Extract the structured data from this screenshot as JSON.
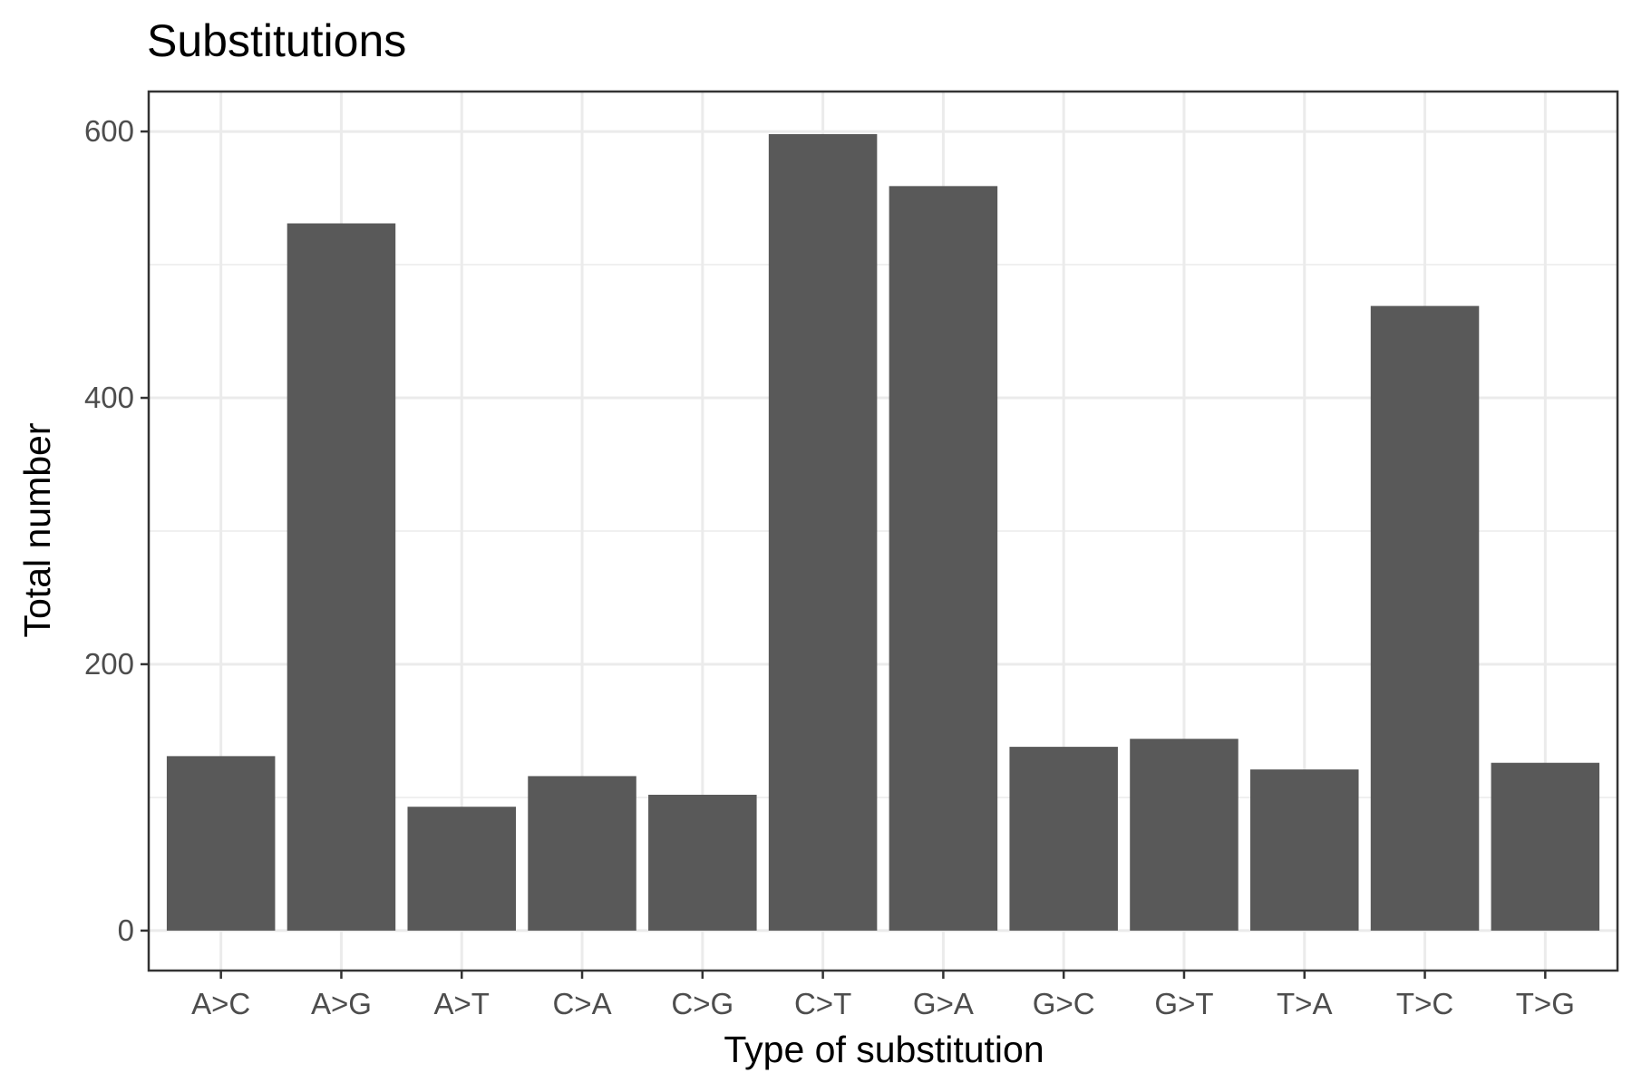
{
  "chart_data": {
    "type": "bar",
    "title": "Substitutions",
    "xlabel": "Type of substitution",
    "ylabel": "Total number",
    "categories": [
      "A>C",
      "A>G",
      "A>T",
      "C>A",
      "C>G",
      "C>T",
      "G>A",
      "G>C",
      "G>T",
      "T>A",
      "T>C",
      "T>G"
    ],
    "values": [
      131,
      531,
      93,
      116,
      102,
      598,
      559,
      138,
      144,
      121,
      469,
      126
    ],
    "ylim": [
      -30,
      630
    ],
    "yticks": [
      0,
      200,
      400,
      600
    ],
    "yticks_minor": [
      100,
      300,
      500
    ],
    "grid": true,
    "legend": "none",
    "colors": {
      "bar": "#595959",
      "grid": "#ebebeb",
      "panel_border": "#333333",
      "tick_text": "#4d4d4d",
      "background": "#ffffff"
    }
  }
}
